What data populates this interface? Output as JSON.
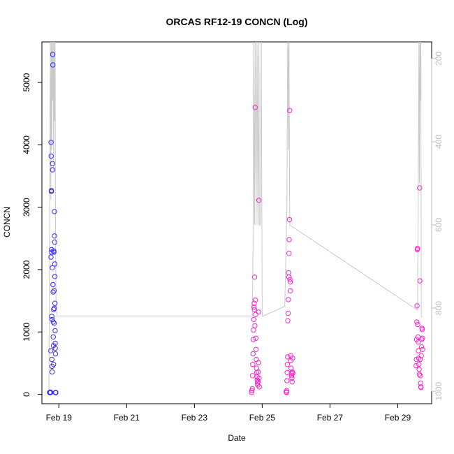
{
  "chart_data": {
    "type": "scatter",
    "title": "ORCAS RF12-19 CONCN (Log)",
    "xlabel": "Date",
    "ylabel": "CONCN",
    "xlim": [
      "2016-02-18 12:00",
      "2016-03-01 00:00"
    ],
    "ylim": [
      -150,
      5650
    ],
    "y2lim": [
      1030,
      160
    ],
    "y2_reversed": true,
    "grid": false,
    "legend": "none",
    "x_ticks": [
      "Feb 19",
      "Feb 21",
      "Feb 23",
      "Feb 25",
      "Feb 27",
      "Feb 29"
    ],
    "x_tick_dates": [
      "2016-02-19",
      "2016-02-21",
      "2016-02-23",
      "2016-02-25",
      "2016-02-27",
      "2016-02-29"
    ],
    "y_ticks": [
      0,
      1000,
      2000,
      3000,
      4000,
      5000
    ],
    "y2_ticks": [
      200,
      400,
      600,
      800,
      1000
    ],
    "colors": {
      "flight_early": "#3a2bff",
      "flight_late": "#ff22cc",
      "pressure_line": "#c8c8c8",
      "axis": "#000000",
      "right_axis": "#bdbdbd"
    },
    "pressure_line": [
      {
        "x": "2016-02-18 17:00",
        "y": 1000
      },
      {
        "x": "2016-02-18 17:30",
        "y": 560
      },
      {
        "x": "2016-02-18 18:00",
        "y": 160
      },
      {
        "x": "2016-02-18 18:20",
        "y": 540
      },
      {
        "x": "2016-02-18 18:40",
        "y": 160
      },
      {
        "x": "2016-02-18 19:00",
        "y": 420
      },
      {
        "x": "2016-02-18 19:20",
        "y": 160
      },
      {
        "x": "2016-02-18 19:40",
        "y": 300
      },
      {
        "x": "2016-02-18 20:00",
        "y": 160
      },
      {
        "x": "2016-02-18 20:20",
        "y": 470
      },
      {
        "x": "2016-02-18 20:40",
        "y": 160
      },
      {
        "x": "2016-02-18 21:00",
        "y": 350
      },
      {
        "x": "2016-02-18 21:20",
        "y": 160
      },
      {
        "x": "2016-02-18 21:40",
        "y": 620
      },
      {
        "x": "2016-02-18 22:00",
        "y": 780
      },
      {
        "x": "2016-02-18 22:40",
        "y": 819
      },
      {
        "x": "2016-02-24 17:00",
        "y": 819
      },
      {
        "x": "2016-02-24 17:30",
        "y": 650
      },
      {
        "x": "2016-02-24 18:00",
        "y": 160
      },
      {
        "x": "2016-02-24 18:30",
        "y": 600
      },
      {
        "x": "2016-02-24 19:00",
        "y": 160
      },
      {
        "x": "2016-02-24 19:40",
        "y": 600
      },
      {
        "x": "2016-02-24 20:20",
        "y": 160
      },
      {
        "x": "2016-02-24 21:00",
        "y": 600
      },
      {
        "x": "2016-02-24 21:40",
        "y": 160
      },
      {
        "x": "2016-02-24 22:00",
        "y": 600
      },
      {
        "x": "2016-02-24 22:40",
        "y": 600
      },
      {
        "x": "2016-02-24 23:20",
        "y": 160
      },
      {
        "x": "2016-02-25 00:00",
        "y": 820
      },
      {
        "x": "2016-02-25 16:00",
        "y": 796
      },
      {
        "x": "2016-02-25 17:30",
        "y": 560
      },
      {
        "x": "2016-02-25 18:00",
        "y": 160
      },
      {
        "x": "2016-02-25 18:20",
        "y": 180
      },
      {
        "x": "2016-02-25 18:40",
        "y": 420
      },
      {
        "x": "2016-02-25 19:00",
        "y": 160
      },
      {
        "x": "2016-02-25 19:30",
        "y": 600
      },
      {
        "x": "2016-02-29 14:00",
        "y": 805
      },
      {
        "x": "2016-02-29 14:30",
        "y": 520
      },
      {
        "x": "2016-02-29 15:00",
        "y": 160
      },
      {
        "x": "2016-02-29 15:20",
        "y": 500
      },
      {
        "x": "2016-02-29 15:40",
        "y": 160
      },
      {
        "x": "2016-02-29 16:00",
        "y": 300
      },
      {
        "x": "2016-02-29 16:20",
        "y": 160
      },
      {
        "x": "2016-02-29 16:40",
        "y": 820
      },
      {
        "x": "2016-02-29 17:20",
        "y": 822
      }
    ],
    "series": [
      {
        "color": "#3a2bff",
        "points": [
          {
            "x": "2016-02-18 17:30",
            "y": 30
          },
          {
            "x": "2016-02-18 17:45",
            "y": 25
          },
          {
            "x": "2016-02-18 18:00",
            "y": 35
          },
          {
            "x": "2016-02-18 18:15",
            "y": 30
          },
          {
            "x": "2016-02-18 18:20",
            "y": 700
          },
          {
            "x": "2016-02-18 18:25",
            "y": 2200
          },
          {
            "x": "2016-02-18 18:30",
            "y": 4040
          },
          {
            "x": "2016-02-18 18:35",
            "y": 3820
          },
          {
            "x": "2016-02-18 18:40",
            "y": 3250
          },
          {
            "x": "2016-02-18 18:45",
            "y": 3270
          },
          {
            "x": "2016-02-18 18:50",
            "y": 2320
          },
          {
            "x": "2016-02-18 18:55",
            "y": 2280
          },
          {
            "x": "2016-02-18 19:00",
            "y": 1250
          },
          {
            "x": "2016-02-18 19:05",
            "y": 560
          },
          {
            "x": "2016-02-18 19:10",
            "y": 450
          },
          {
            "x": "2016-02-18 19:15",
            "y": 360
          },
          {
            "x": "2016-02-18 19:20",
            "y": 1200
          },
          {
            "x": "2016-02-18 19:25",
            "y": 2030
          },
          {
            "x": "2016-02-18 19:30",
            "y": 3700
          },
          {
            "x": "2016-02-18 19:35",
            "y": 3600
          },
          {
            "x": "2016-02-18 19:40",
            "y": 5450
          },
          {
            "x": "2016-02-18 19:45",
            "y": 5280
          },
          {
            "x": "2016-02-18 19:50",
            "y": 1760
          },
          {
            "x": "2016-02-18 19:55",
            "y": 1640
          },
          {
            "x": "2016-02-18 20:00",
            "y": 1160
          },
          {
            "x": "2016-02-18 20:05",
            "y": 920
          },
          {
            "x": "2016-02-18 20:10",
            "y": 780
          },
          {
            "x": "2016-02-18 20:15",
            "y": 480
          },
          {
            "x": "2016-02-18 20:20",
            "y": 1360
          },
          {
            "x": "2016-02-18 20:25",
            "y": 2300
          },
          {
            "x": "2016-02-18 20:30",
            "y": 2280
          },
          {
            "x": "2016-02-18 20:35",
            "y": 1660
          },
          {
            "x": "2016-02-18 20:40",
            "y": 1140
          },
          {
            "x": "2016-02-18 20:45",
            "y": 1380
          },
          {
            "x": "2016-02-18 20:50",
            "y": 2930
          },
          {
            "x": "2016-02-18 20:55",
            "y": 2540
          },
          {
            "x": "2016-02-18 21:00",
            "y": 2440
          },
          {
            "x": "2016-02-18 21:05",
            "y": 2090
          },
          {
            "x": "2016-02-18 21:10",
            "y": 1890
          },
          {
            "x": "2016-02-18 21:15",
            "y": 1460
          },
          {
            "x": "2016-02-18 21:20",
            "y": 1020
          },
          {
            "x": "2016-02-18 21:25",
            "y": 820
          },
          {
            "x": "2016-02-18 21:30",
            "y": 740
          },
          {
            "x": "2016-02-18 21:35",
            "y": 650
          },
          {
            "x": "2016-02-18 21:40",
            "y": 30
          },
          {
            "x": "2016-02-18 21:45",
            "y": 25
          },
          {
            "x": "2016-02-18 21:50",
            "y": 30
          }
        ]
      },
      {
        "color": "#ff22cc",
        "points": [
          {
            "x": "2016-02-24 16:30",
            "y": 30
          },
          {
            "x": "2016-02-24 16:45",
            "y": 60
          },
          {
            "x": "2016-02-24 17:00",
            "y": 90
          },
          {
            "x": "2016-02-24 17:10",
            "y": 300
          },
          {
            "x": "2016-02-24 17:20",
            "y": 480
          },
          {
            "x": "2016-02-24 17:30",
            "y": 650
          },
          {
            "x": "2016-02-24 17:40",
            "y": 880
          },
          {
            "x": "2016-02-24 17:50",
            "y": 1030
          },
          {
            "x": "2016-02-24 18:00",
            "y": 1200
          },
          {
            "x": "2016-02-24 18:10",
            "y": 1400
          },
          {
            "x": "2016-02-24 18:20",
            "y": 1460
          },
          {
            "x": "2016-02-24 18:30",
            "y": 1360
          },
          {
            "x": "2016-02-24 18:40",
            "y": 1880
          },
          {
            "x": "2016-02-24 18:50",
            "y": 1100
          },
          {
            "x": "2016-02-24 19:00",
            "y": 4600
          },
          {
            "x": "2016-02-24 19:10",
            "y": 1510
          },
          {
            "x": "2016-02-24 19:20",
            "y": 1280
          },
          {
            "x": "2016-02-24 19:30",
            "y": 900
          },
          {
            "x": "2016-02-24 19:40",
            "y": 720
          },
          {
            "x": "2016-02-24 19:50",
            "y": 560
          },
          {
            "x": "2016-02-24 20:00",
            "y": 420
          },
          {
            "x": "2016-02-24 20:10",
            "y": 350
          },
          {
            "x": "2016-02-24 20:20",
            "y": 280
          },
          {
            "x": "2016-02-24 20:30",
            "y": 230
          },
          {
            "x": "2016-02-24 20:40",
            "y": 180
          },
          {
            "x": "2016-02-24 20:50",
            "y": 150
          },
          {
            "x": "2016-02-24 21:00",
            "y": 200
          },
          {
            "x": "2016-02-24 21:10",
            "y": 360
          },
          {
            "x": "2016-02-24 21:20",
            "y": 510
          },
          {
            "x": "2016-02-24 21:30",
            "y": 1320
          },
          {
            "x": "2016-02-24 21:40",
            "y": 3110
          },
          {
            "x": "2016-02-24 21:50",
            "y": 260
          },
          {
            "x": "2016-02-24 22:00",
            "y": 120
          },
          {
            "x": "2016-02-25 17:00",
            "y": 40
          },
          {
            "x": "2016-02-25 17:10",
            "y": 30
          },
          {
            "x": "2016-02-25 17:20",
            "y": 60
          },
          {
            "x": "2016-02-25 17:30",
            "y": 220
          },
          {
            "x": "2016-02-25 17:40",
            "y": 350
          },
          {
            "x": "2016-02-25 17:50",
            "y": 480
          },
          {
            "x": "2016-02-25 18:00",
            "y": 600
          },
          {
            "x": "2016-02-25 18:10",
            "y": 1180
          },
          {
            "x": "2016-02-25 18:20",
            "y": 1300
          },
          {
            "x": "2016-02-25 18:30",
            "y": 1520
          },
          {
            "x": "2016-02-25 18:40",
            "y": 1950
          },
          {
            "x": "2016-02-25 18:50",
            "y": 1880
          },
          {
            "x": "2016-02-25 19:00",
            "y": 2260
          },
          {
            "x": "2016-02-25 19:10",
            "y": 2480
          },
          {
            "x": "2016-02-25 19:20",
            "y": 2800
          },
          {
            "x": "2016-02-25 19:30",
            "y": 4550
          },
          {
            "x": "2016-02-25 19:40",
            "y": 1840
          },
          {
            "x": "2016-02-25 19:50",
            "y": 1800
          },
          {
            "x": "2016-02-25 20:00",
            "y": 1660
          },
          {
            "x": "2016-02-25 20:10",
            "y": 620
          },
          {
            "x": "2016-02-25 20:20",
            "y": 540
          },
          {
            "x": "2016-02-25 20:30",
            "y": 420
          },
          {
            "x": "2016-02-25 20:40",
            "y": 340
          },
          {
            "x": "2016-02-25 20:50",
            "y": 300
          },
          {
            "x": "2016-02-25 21:00",
            "y": 260
          },
          {
            "x": "2016-02-25 21:10",
            "y": 200
          },
          {
            "x": "2016-02-25 21:20",
            "y": 360
          },
          {
            "x": "2016-02-25 21:30",
            "y": 580
          },
          {
            "x": "2016-02-25 21:40",
            "y": 340
          },
          {
            "x": "2016-02-29 13:00",
            "y": 460
          },
          {
            "x": "2016-02-29 13:10",
            "y": 560
          },
          {
            "x": "2016-02-29 13:20",
            "y": 880
          },
          {
            "x": "2016-02-29 13:30",
            "y": 1160
          },
          {
            "x": "2016-02-29 13:40",
            "y": 1420
          },
          {
            "x": "2016-02-29 13:50",
            "y": 2320
          },
          {
            "x": "2016-02-29 14:00",
            "y": 2340
          },
          {
            "x": "2016-02-29 14:10",
            "y": 1120
          },
          {
            "x": "2016-02-29 14:20",
            "y": 920
          },
          {
            "x": "2016-02-29 14:30",
            "y": 840
          },
          {
            "x": "2016-02-29 14:40",
            "y": 700
          },
          {
            "x": "2016-02-29 14:50",
            "y": 580
          },
          {
            "x": "2016-02-29 15:00",
            "y": 480
          },
          {
            "x": "2016-02-29 15:10",
            "y": 400
          },
          {
            "x": "2016-02-29 15:20",
            "y": 320
          },
          {
            "x": "2016-02-29 15:30",
            "y": 3310
          },
          {
            "x": "2016-02-29 15:40",
            "y": 1820
          },
          {
            "x": "2016-02-29 15:50",
            "y": 560
          },
          {
            "x": "2016-02-29 16:00",
            "y": 300
          },
          {
            "x": "2016-02-29 16:10",
            "y": 180
          },
          {
            "x": "2016-02-29 16:20",
            "y": 120
          },
          {
            "x": "2016-02-29 16:30",
            "y": 110
          },
          {
            "x": "2016-02-29 16:40",
            "y": 620
          },
          {
            "x": "2016-02-29 16:50",
            "y": 760
          },
          {
            "x": "2016-02-29 17:00",
            "y": 880
          },
          {
            "x": "2016-02-29 17:10",
            "y": 1060
          },
          {
            "x": "2016-02-29 17:20",
            "y": 1040
          },
          {
            "x": "2016-02-29 17:30",
            "y": 900
          },
          {
            "x": "2016-02-29 17:40",
            "y": 720
          }
        ]
      }
    ]
  }
}
